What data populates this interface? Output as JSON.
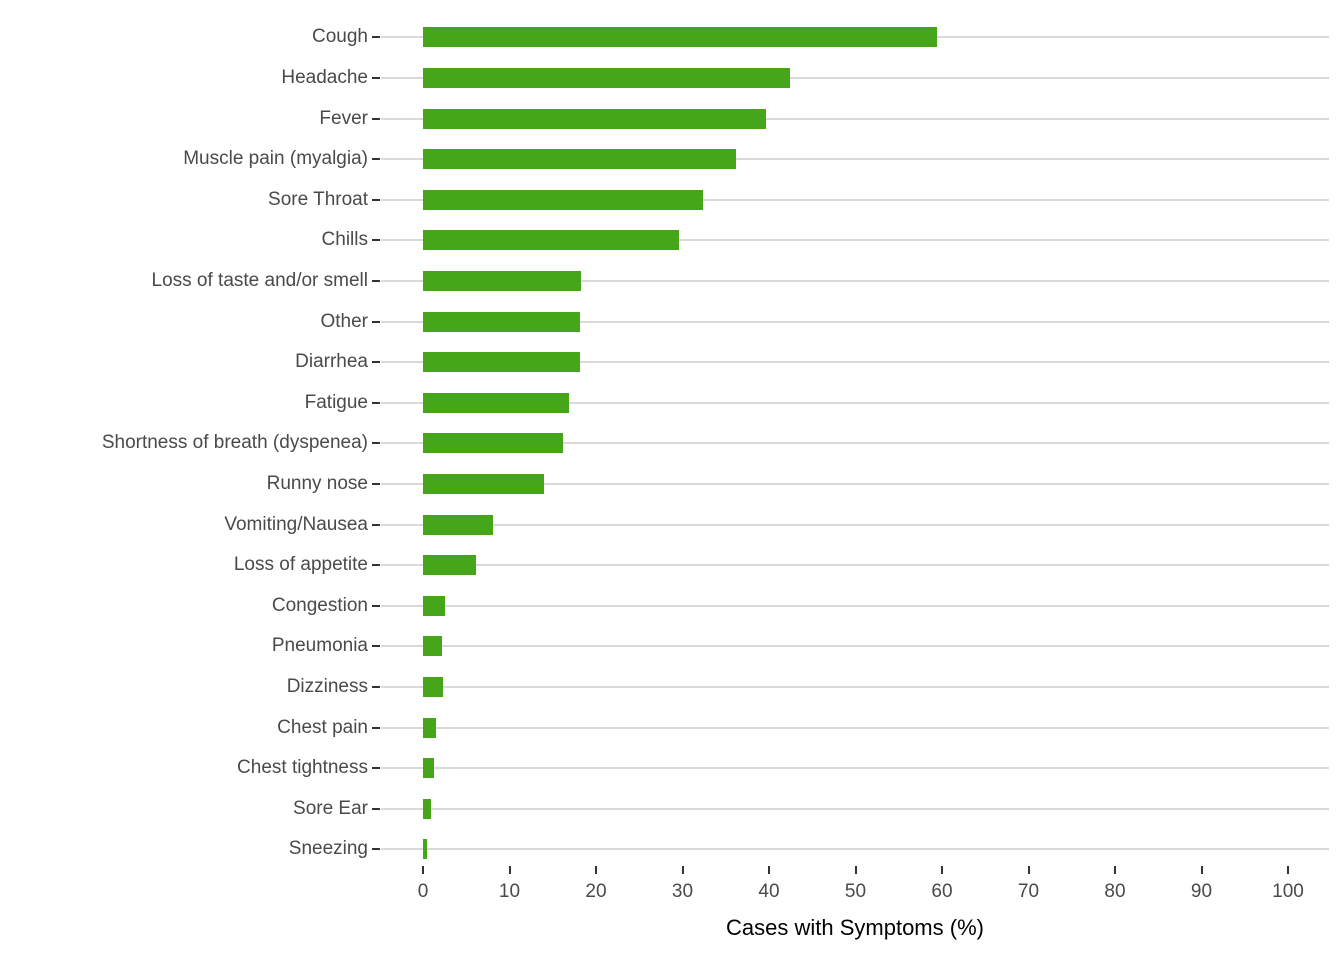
{
  "chart_data": {
    "type": "bar",
    "orientation": "horizontal",
    "title": "",
    "xlabel": "Cases with Symptoms (%)",
    "ylabel": "",
    "xlim": [
      0,
      100
    ],
    "x_ticks": [
      0,
      10,
      20,
      30,
      40,
      50,
      60,
      70,
      80,
      90,
      100
    ],
    "grid": "horizontal major gridlines only, light gray, white background",
    "legend": "none",
    "categories": [
      "Cough",
      "Headache",
      "Fever",
      "Muscle pain (myalgia)",
      "Sore Throat",
      "Chills",
      "Loss of taste and/or smell",
      "Other",
      "Diarrhea",
      "Fatigue",
      "Shortness of breath (dyspenea)",
      "Runny nose",
      "Vomiting/Nausea",
      "Loss of appetite",
      "Congestion",
      "Pneumonia",
      "Dizziness",
      "Chest pain",
      "Chest tightness",
      "Sore Ear",
      "Sneezing"
    ],
    "values": [
      59.4,
      42.4,
      39.6,
      36.2,
      32.4,
      29.6,
      18.3,
      18.1,
      18.1,
      16.9,
      16.2,
      14.0,
      8.1,
      6.1,
      2.5,
      2.2,
      2.3,
      1.5,
      1.3,
      0.9,
      0.4
    ],
    "colors": {
      "bar": "#45a61a",
      "gridline": "#d9d9d9",
      "tick_mark": "#333333",
      "axis_text": "#4a4a4a",
      "axis_title": "#000000",
      "background": "#ffffff"
    }
  }
}
